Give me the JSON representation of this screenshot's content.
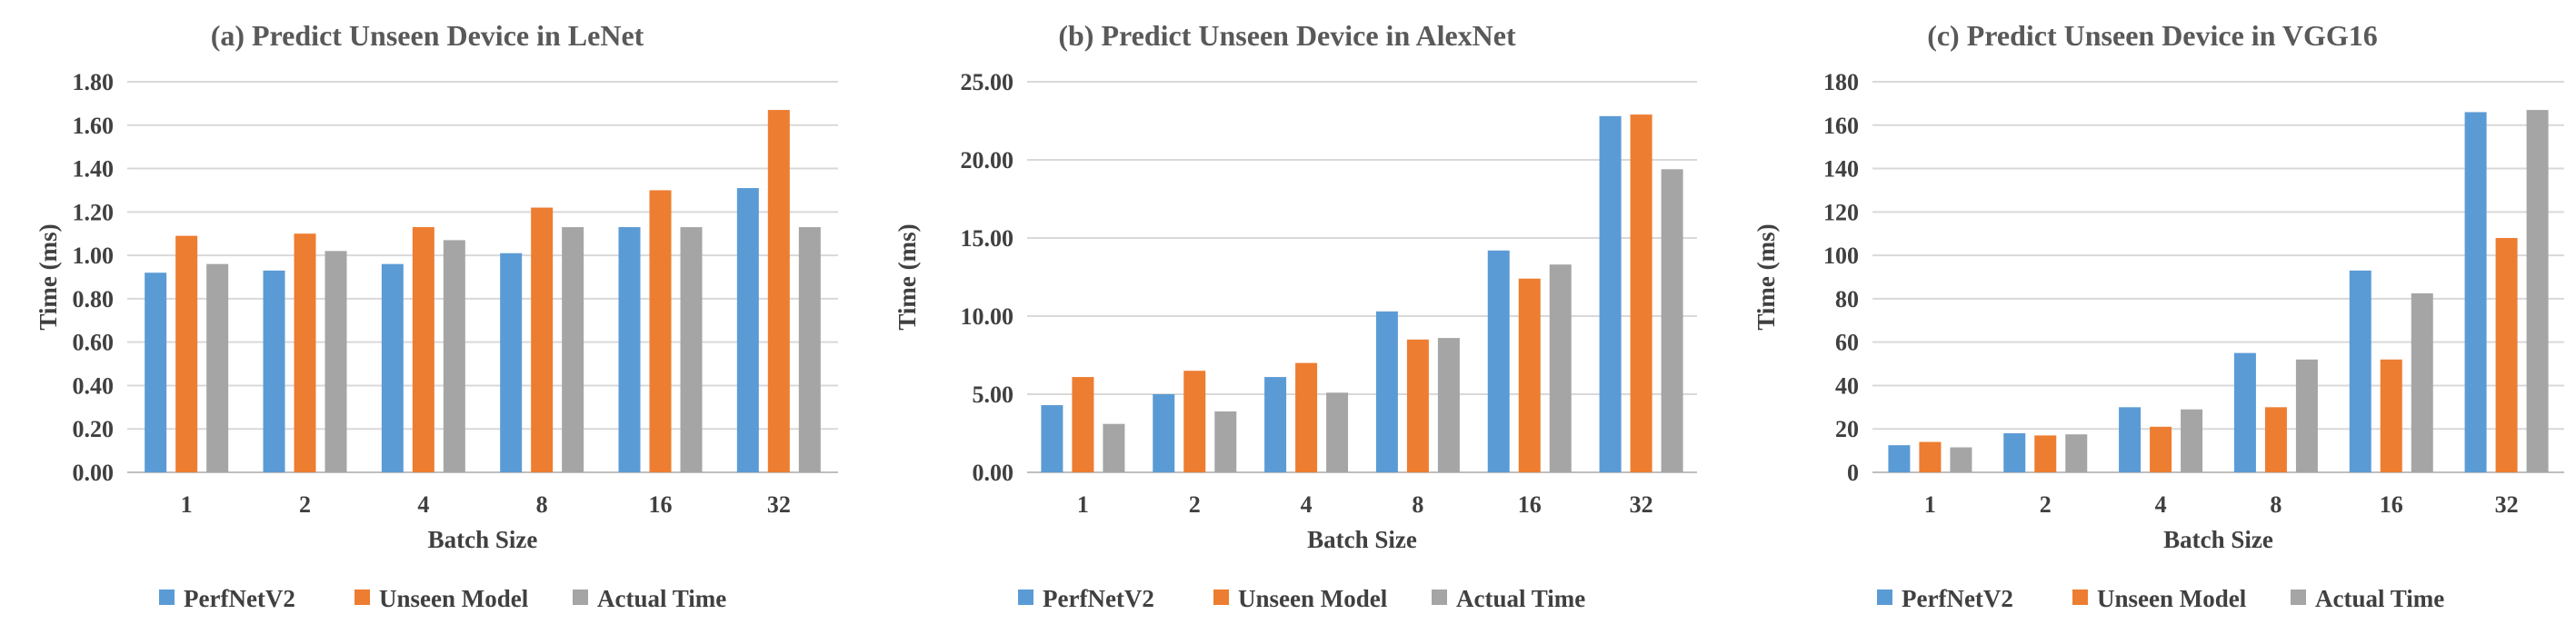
{
  "figure": {
    "colors": {
      "PerfNetV2": "#5b9bd5",
      "Unseen Model": "#ed7d31",
      "Actual Time": "#a5a5a5"
    }
  },
  "chart_data": [
    {
      "type": "bar",
      "title": "(a) Predict Unseen Device in LeNet",
      "xlabel": "Batch Size",
      "ylabel": "Time (ms)",
      "categories": [
        "1",
        "2",
        "4",
        "8",
        "16",
        "32"
      ],
      "ylim": [
        0,
        1.8
      ],
      "yticks": [
        0,
        0.2,
        0.4,
        0.6,
        0.8,
        1.0,
        1.2,
        1.4,
        1.6,
        1.8
      ],
      "tick_labels": [
        "0.00",
        "0.20",
        "0.40",
        "0.60",
        "0.80",
        "1.00",
        "1.20",
        "1.40",
        "1.60",
        "1.80"
      ],
      "grid": true,
      "legend_position": "bottom",
      "series": [
        {
          "name": "PerfNetV2",
          "values": [
            0.92,
            0.93,
            0.96,
            1.01,
            1.13,
            1.31
          ]
        },
        {
          "name": "Unseen Model",
          "values": [
            1.09,
            1.1,
            1.13,
            1.22,
            1.3,
            1.67
          ]
        },
        {
          "name": "Actual Time",
          "values": [
            0.96,
            1.02,
            1.07,
            1.13,
            1.13,
            1.13
          ]
        }
      ]
    },
    {
      "type": "bar",
      "title": "(b) Predict Unseen Device in AlexNet",
      "xlabel": "Batch Size",
      "ylabel": "Time (ms)",
      "categories": [
        "1",
        "2",
        "4",
        "8",
        "16",
        "32"
      ],
      "ylim": [
        0,
        25
      ],
      "yticks": [
        0,
        5,
        10,
        15,
        20,
        25
      ],
      "tick_labels": [
        "0.00",
        "5.00",
        "10.00",
        "15.00",
        "20.00",
        "25.00"
      ],
      "grid": true,
      "legend_position": "bottom",
      "series": [
        {
          "name": "PerfNetV2",
          "values": [
            4.3,
            5.0,
            6.1,
            10.3,
            14.2,
            22.8
          ]
        },
        {
          "name": "Unseen Model",
          "values": [
            6.1,
            6.5,
            7.0,
            8.5,
            12.4,
            22.9
          ]
        },
        {
          "name": "Actual Time",
          "values": [
            3.1,
            3.9,
            5.1,
            8.6,
            13.3,
            19.4
          ]
        }
      ]
    },
    {
      "type": "bar",
      "title": "(c) Predict Unseen Device in VGG16",
      "xlabel": "Batch Size",
      "ylabel": "Time (ms)",
      "categories": [
        "1",
        "2",
        "4",
        "8",
        "16",
        "32"
      ],
      "ylim": [
        0,
        180
      ],
      "yticks": [
        0,
        20,
        40,
        60,
        80,
        100,
        120,
        140,
        160,
        180
      ],
      "tick_labels": [
        "0",
        "20",
        "40",
        "60",
        "80",
        "100",
        "120",
        "140",
        "160",
        "180"
      ],
      "grid": true,
      "legend_position": "bottom",
      "series": [
        {
          "name": "PerfNetV2",
          "values": [
            12.5,
            18.0,
            30.0,
            55.0,
            93.0,
            166.0
          ]
        },
        {
          "name": "Unseen Model",
          "values": [
            14.0,
            17.0,
            21.0,
            30.0,
            52.0,
            108.0
          ]
        },
        {
          "name": "Actual Time",
          "values": [
            11.5,
            17.5,
            29.0,
            52.0,
            82.5,
            167.0
          ]
        }
      ]
    }
  ]
}
